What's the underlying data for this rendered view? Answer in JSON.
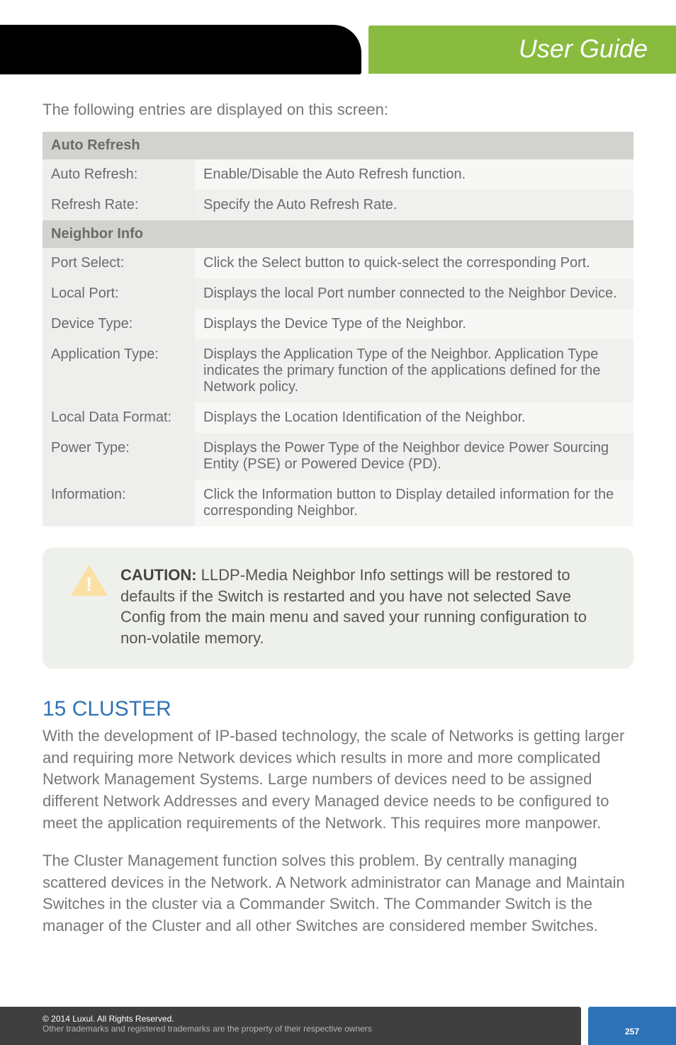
{
  "banner": {
    "title": "User Guide"
  },
  "intro": "The following entries are displayed on this screen:",
  "sections": {
    "auto_refresh": {
      "header": "Auto Refresh",
      "rows": [
        {
          "key": "Auto Refresh:",
          "val": "Enable/Disable the Auto Refresh function."
        },
        {
          "key": "Refresh Rate:",
          "val": "Specify the Auto Refresh Rate."
        }
      ]
    },
    "neighbor_info": {
      "header": "Neighbor Info",
      "rows": [
        {
          "key": "Port Select:",
          "val": "Click the Select button to quick-select the corresponding Port."
        },
        {
          "key": "Local Port:",
          "val": "Displays the local Port number connected to the Neighbor Device."
        },
        {
          "key": "Device Type:",
          "val": "Displays the Device Type of the Neighbor."
        },
        {
          "key": "Application Type:",
          "val": "Displays the Application Type of the Neighbor. Application Type indicates the primary function of the applications defined for the Network policy."
        },
        {
          "key": "Local Data Format:",
          "val": "Displays the Location Identification of the Neighbor."
        },
        {
          "key": "Power Type:",
          "val": "Displays the Power Type of the Neighbor device Power Sourcing Entity (PSE) or Powered Device (PD)."
        },
        {
          "key": "Information:",
          "val": "Click the Information button to Display detailed information for the corresponding Neighbor."
        }
      ]
    }
  },
  "caution": {
    "label": "CAUTION:",
    "body": "LLDP-Media Neighbor Info settings will be restored to defaults if the Switch is restarted and you have not selected Save Config from the main menu and saved your running configuration to non-volatile memory."
  },
  "cluster": {
    "heading": "15 CLUSTER",
    "p1": "With the development of IP-based technology, the scale of Networks is getting larger and requiring more Network devices which results in more and more complicated Network Management Systems. Large numbers of devices need to be assigned different Network Addresses and every Managed device needs to be configured to meet the application requirements of the Network. This requires more manpower.",
    "p2": "The Cluster Management function solves this problem. By centrally managing scattered devices in the Network. A Network administrator can Manage and Maintain Switches in the cluster via a Commander Switch. The Commander Switch is the manager of the Cluster and all other Switches are considered member Switches."
  },
  "footer": {
    "line1": "© 2014  Luxul. All Rights Reserved.",
    "line2": "Other trademarks and registered trademarks are the property of their respective owners",
    "page": "257"
  },
  "colors": {
    "banner_green": "#88bb3e",
    "heading_blue": "#2e72b7",
    "footer_dark": "#3f3f3f",
    "section_hdr_bg": "#d2d2ce",
    "caution_bg": "#eef0ec",
    "body_text": "#777777"
  }
}
